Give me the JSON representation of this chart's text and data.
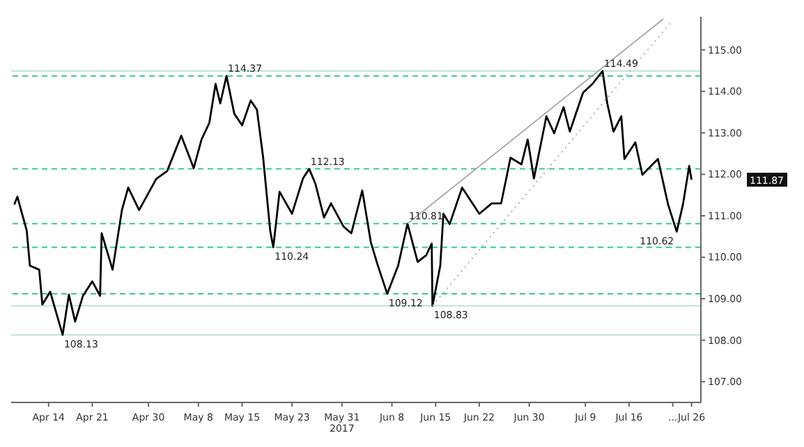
{
  "chart_data": {
    "type": "line",
    "line_style": "solid",
    "marker": "none",
    "xlim": [
      "2017-04-08",
      "2017-07-27T12:00"
    ],
    "xticks": [
      {
        "value": "2017-04-14",
        "label": "Apr 14"
      },
      {
        "value": "2017-04-21",
        "label": "Apr 21"
      },
      {
        "value": "2017-04-30",
        "label": "Apr 30"
      },
      {
        "value": "2017-05-08",
        "label": "May 8"
      },
      {
        "value": "2017-05-15",
        "label": "May 15"
      },
      {
        "value": "2017-05-23",
        "label": "May 23"
      },
      {
        "value": "2017-05-31",
        "label": "May 31\n2017"
      },
      {
        "value": "2017-06-08",
        "label": "Jun 8"
      },
      {
        "value": "2017-06-15",
        "label": "Jun 15"
      },
      {
        "value": "2017-06-22",
        "label": "Jun 22"
      },
      {
        "value": "2017-06-30",
        "label": "Jun 30"
      },
      {
        "value": "2017-07-09",
        "label": "Jul 9"
      },
      {
        "value": "2017-07-16",
        "label": "Jul 16"
      },
      {
        "value": "2017-07-23",
        "label": "..."
      },
      {
        "value": "2017-07-26",
        "label": "Jul 26"
      }
    ],
    "ylim": [
      106.5,
      115.8
    ],
    "yticks": [
      {
        "value": 107,
        "label": "107.00"
      },
      {
        "value": 108,
        "label": "108.00"
      },
      {
        "value": 109,
        "label": "109.00"
      },
      {
        "value": 110,
        "label": "110.00"
      },
      {
        "value": 111,
        "label": "111.00"
      },
      {
        "value": 112,
        "label": "112.00"
      },
      {
        "value": 113,
        "label": "113.00"
      },
      {
        "value": 114,
        "label": "114.00"
      },
      {
        "value": 115,
        "label": "115.00"
      }
    ],
    "series": [
      {
        "color": "#000000",
        "x": [
          "2017-04-08T12:00",
          "2017-04-09",
          "2017-04-10T12:00",
          "2017-04-11",
          "2017-04-12T12:00",
          "2017-04-13",
          "2017-04-14T06:00",
          "2017-04-16T06:00",
          "2017-04-17T06:00",
          "2017-04-18T06:00",
          "2017-04-19T12:00",
          "2017-04-21",
          "2017-04-22T06:00",
          "2017-04-22T12:00",
          "2017-04-24T06:00",
          "2017-04-25T18:00",
          "2017-04-26T18:00",
          "2017-04-28T12:00",
          "2017-05-01T06:00",
          "2017-05-03",
          "2017-05-05T06:00",
          "2017-05-07T06:00",
          "2017-05-08T12:00",
          "2017-05-09T18:00",
          "2017-05-10T18:00",
          "2017-05-11T12:00",
          "2017-05-12T12:00",
          "2017-05-13T18:00",
          "2017-05-15",
          "2017-05-16T09:00",
          "2017-05-17T09:00",
          "2017-05-18T09:00",
          "2017-05-19T12:00",
          "2017-05-20",
          "2017-05-21",
          "2017-05-23",
          "2017-05-24T18:00",
          "2017-05-25T18:00",
          "2017-05-26T18:00",
          "2017-05-28T03:00",
          "2017-05-29T06:00",
          "2017-05-31T06:00",
          "2017-06-01T12:00",
          "2017-06-03T06:00",
          "2017-06-04T15:00",
          "2017-06-05T18:00",
          "2017-06-07T06:00",
          "2017-06-09",
          "2017-06-10T12:00",
          "2017-06-12T03:00",
          "2017-06-13T12:00",
          "2017-06-14T09:00",
          "2017-06-14T12:00",
          "2017-06-15T18:00",
          "2017-06-16T06:00",
          "2017-06-17T06:00",
          "2017-06-19T06:00",
          "2017-06-22",
          "2017-06-24",
          "2017-06-25T12:00",
          "2017-06-27",
          "2017-06-28T18:00",
          "2017-06-29T18:00",
          "2017-06-30T18:00",
          "2017-07-02T18:00",
          "2017-07-04",
          "2017-07-05T12:00",
          "2017-07-06T12:00",
          "2017-07-08T15:00",
          "2017-07-10T03:00",
          "2017-07-11T18:00",
          "2017-07-12T12:00",
          "2017-07-13T12:00",
          "2017-07-14T18:00",
          "2017-07-15T06:00",
          "2017-07-17",
          "2017-07-18T03:00",
          "2017-07-20T15:00",
          "2017-07-22T06:00",
          "2017-07-23T15:00",
          "2017-07-24T15:00",
          "2017-07-25T15:00",
          "2017-07-26"
        ],
        "values": [
          111.27,
          111.46,
          110.64,
          109.8,
          109.7,
          108.86,
          109.17,
          108.13,
          109.1,
          108.45,
          109.07,
          109.42,
          109.07,
          110.58,
          109.7,
          111.14,
          111.68,
          111.14,
          111.89,
          112.08,
          112.93,
          112.15,
          112.84,
          113.24,
          114.18,
          113.71,
          114.37,
          113.46,
          113.18,
          113.78,
          113.56,
          112.4,
          110.64,
          110.24,
          111.58,
          111.05,
          111.9,
          112.13,
          111.77,
          110.96,
          111.3,
          110.74,
          110.58,
          111.61,
          110.36,
          109.8,
          109.12,
          109.8,
          110.81,
          109.89,
          110.05,
          110.33,
          108.83,
          109.8,
          111.05,
          110.8,
          111.68,
          111.05,
          111.3,
          111.3,
          112.4,
          112.24,
          112.84,
          111.9,
          113.4,
          112.99,
          113.62,
          113.03,
          113.97,
          114.18,
          114.49,
          113.71,
          113.03,
          113.4,
          112.37,
          112.77,
          111.99,
          112.37,
          111.27,
          110.62,
          111.27,
          112.2,
          111.87
        ]
      },
      {
        "type": "line",
        "color": "#a6a6a6",
        "line_style": "solid",
        "x": [
          "2017-06-10T12:00",
          "2017-07-21T12:00"
        ],
        "values": [
          110.81,
          115.75
        ]
      },
      {
        "type": "line",
        "color": "#a6a6a6",
        "line_style": "dotted",
        "x": [
          "2017-06-14T12:00",
          "2017-07-23"
        ],
        "values": [
          108.83,
          115.72
        ]
      }
    ],
    "ref_lines": [
      {
        "axis": "y",
        "value": 114.49,
        "color": "#bfe3da",
        "line_style": "solid"
      },
      {
        "axis": "y",
        "value": 114.37,
        "color": "#3cc49b",
        "line_style": "dashed"
      },
      {
        "axis": "y",
        "value": 112.13,
        "color": "#3cc49b",
        "line_style": "dashed"
      },
      {
        "axis": "y",
        "value": 110.81,
        "color": "#3cc49b",
        "line_style": "dashed"
      },
      {
        "axis": "y",
        "value": 110.24,
        "color": "#3cc49b",
        "line_style": "dashed"
      },
      {
        "axis": "y",
        "value": 109.12,
        "color": "#3cc49b",
        "line_style": "dashed"
      },
      {
        "axis": "y",
        "value": 108.83,
        "color": "#bfe3da",
        "line_style": "solid"
      },
      {
        "axis": "y",
        "value": 108.13,
        "color": "#bfe3da",
        "line_style": "solid"
      }
    ],
    "annotations": [
      {
        "text": "114.37",
        "x": "2017-05-12T12:00",
        "y": 114.37
      },
      {
        "text": "112.13",
        "x": "2017-05-25T18:00",
        "y": 112.13
      },
      {
        "text": "110.24",
        "x": "2017-05-20",
        "y": 110.24
      },
      {
        "text": "108.13",
        "x": "2017-04-16T06:00",
        "y": 108.13
      },
      {
        "text": "109.12",
        "x": "2017-06-07T06:00",
        "y": 109.12
      },
      {
        "text": "110.81",
        "x": "2017-06-10T12:00",
        "y": 110.81
      },
      {
        "text": "108.83",
        "x": "2017-06-14T12:00",
        "y": 108.83
      },
      {
        "text": "114.49",
        "x": "2017-07-11T18:00",
        "y": 114.49
      },
      {
        "text": "110.62",
        "x": "2017-07-23T15:00",
        "y": 110.62
      },
      "111.87"
    ]
  }
}
